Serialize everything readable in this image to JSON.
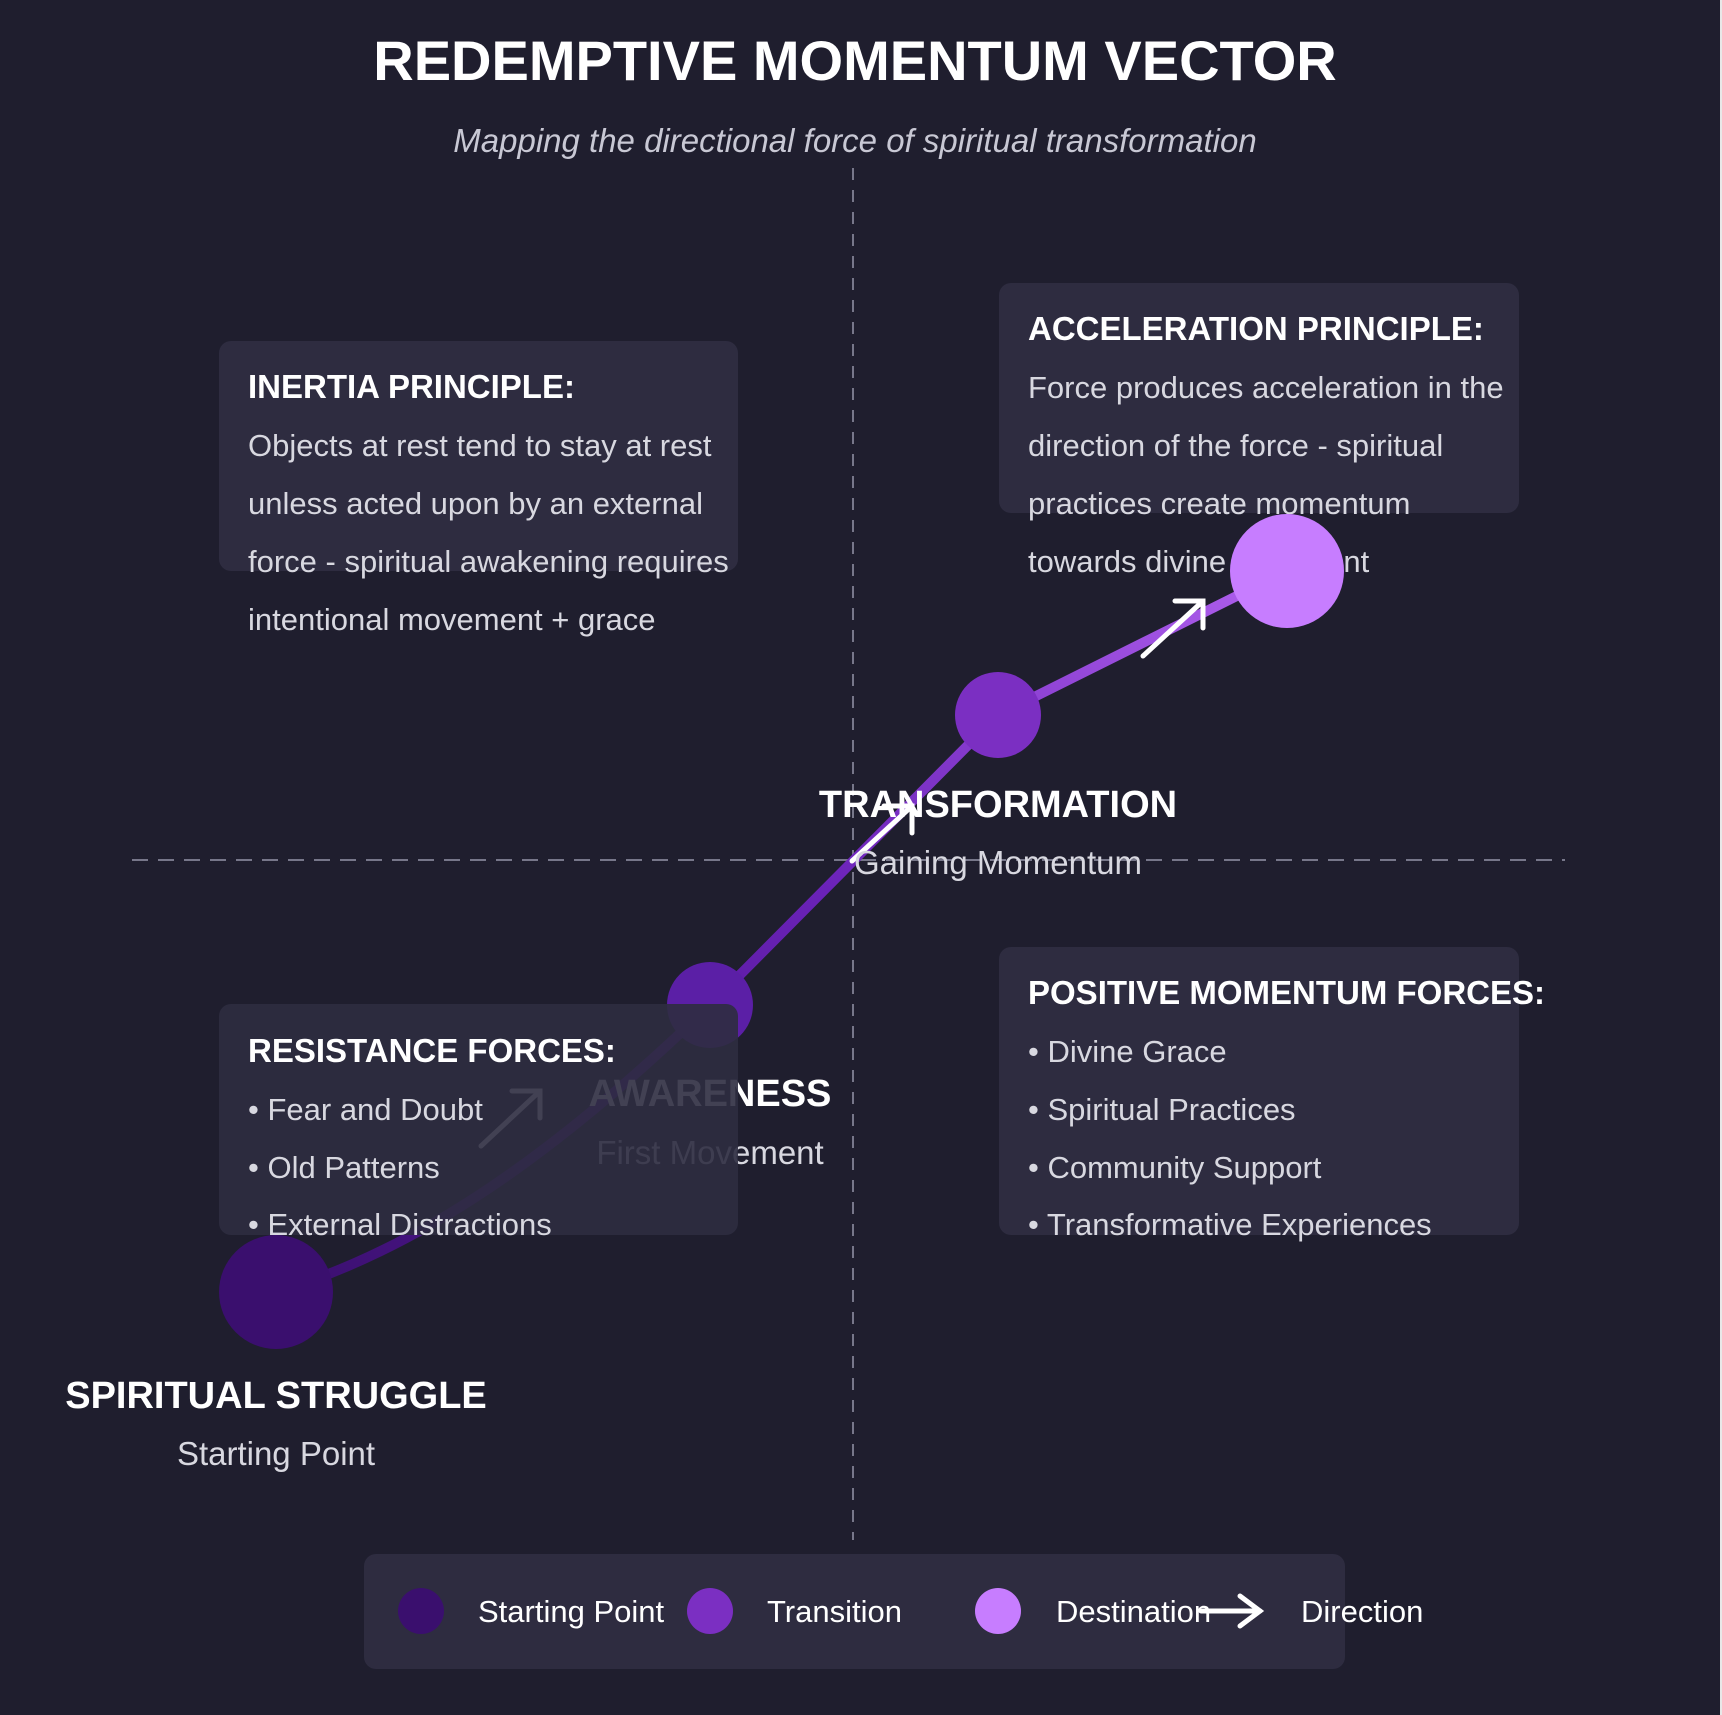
{
  "title": "REDEMPTIVE MOMENTUM VECTOR",
  "subtitle": "Mapping the directional force of spiritual transformation",
  "colors": {
    "background": "#1f1e2e",
    "panel": "#2e2c40",
    "start": "#3a0f6e",
    "transition": "#7b2fc2",
    "destination": "#c77dff",
    "text": "#ffffff",
    "subtext": "#d8d8e0"
  },
  "nodes": {
    "struggle": {
      "label": "SPIRITUAL STRUGGLE",
      "sublabel": "Starting Point"
    },
    "awareness": {
      "label": "AWARENESS",
      "sublabel": "First Movement"
    },
    "transformation": {
      "label": "TRANSFORMATION",
      "sublabel": "Gaining Momentum"
    }
  },
  "panels": {
    "inertia": {
      "title": "INERTIA PRINCIPLE:",
      "lines": [
        "Objects at rest tend to stay at rest",
        "unless acted upon by an external",
        "force - spiritual awakening requires",
        "intentional movement + grace"
      ]
    },
    "acceleration": {
      "title": "ACCELERATION PRINCIPLE:",
      "lines": [
        "Force produces acceleration in the",
        "direction of the force - spiritual",
        "practices create momentum",
        "towards divine alignment"
      ]
    },
    "resistance": {
      "title": "RESISTANCE FORCES:",
      "lines": [
        "• Fear and Doubt",
        "• Old Patterns",
        "• External Distractions"
      ]
    },
    "positive": {
      "title": "POSITIVE MOMENTUM FORCES:",
      "lines": [
        "• Divine Grace",
        "• Spiritual Practices",
        "• Community Support",
        "• Transformative Experiences"
      ]
    }
  },
  "legend": {
    "start": "Starting Point",
    "transition": "Transition",
    "destination": "Destination",
    "direction": "Direction"
  }
}
